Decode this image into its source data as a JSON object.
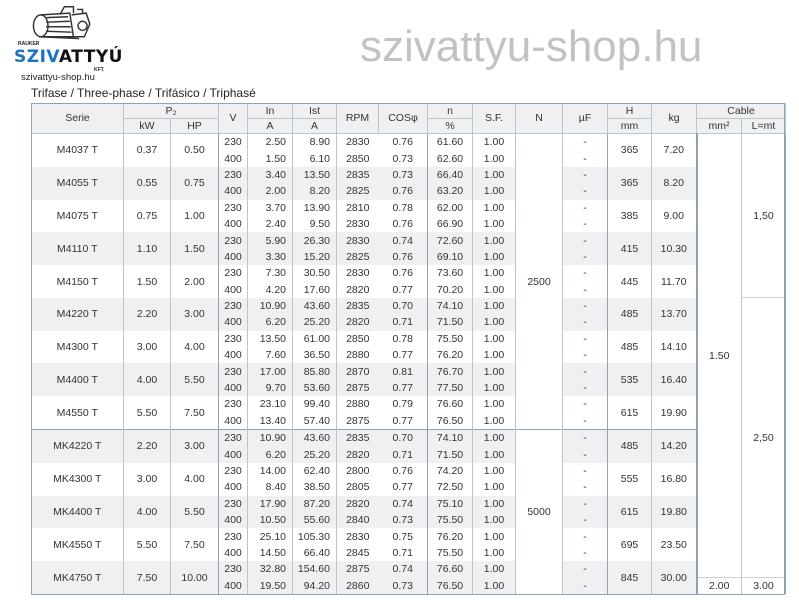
{
  "logo": {
    "small_text": "RAUKER",
    "brand_blue": "SZIV",
    "brand_dark": "ATTYÚ",
    "suffix": "KFT.",
    "icon": "pump-icon",
    "brand_color": "#1b74c0"
  },
  "site": "szivattyu-shop.hu",
  "title": "Trifase / Three-phase / Trifásico / Triphasé",
  "watermark": "szivattyu-shop.hu",
  "headers": {
    "serie": "Serie",
    "p2": "P₂",
    "kw": "kW",
    "hp": "HP",
    "v": "V",
    "in": "In",
    "in_unit": "A",
    "ist": "Ist",
    "ist_unit": "A",
    "rpm": "RPM",
    "cos": "COSφ",
    "n": "n",
    "n_unit": "%",
    "sf": "S.F.",
    "N": "N",
    "uf": "µF",
    "h": "H",
    "h_unit": "mm",
    "kg": "kg",
    "cable": "Cable",
    "mm2": "mm²",
    "lmt": "L=mt"
  },
  "n_values": [
    "2500",
    "5000"
  ],
  "cable": {
    "mm2_main": "1.50",
    "mm2_last": "2.00",
    "l_first": "1,50",
    "l_second": "2,50",
    "l_last": "3.00"
  },
  "rows": [
    {
      "serie": "M4037 T",
      "kw": "0.37",
      "hp": "0.50",
      "h": "365",
      "kg": "7.20",
      "sub": [
        [
          "230",
          "2.50",
          "8.90",
          "2830",
          "0.76",
          "61.60",
          "1.00",
          "-"
        ],
        [
          "400",
          "1.50",
          "6.10",
          "2850",
          "0.73",
          "62.60",
          "1.00",
          "-"
        ]
      ]
    },
    {
      "serie": "M4055 T",
      "kw": "0.55",
      "hp": "0.75",
      "h": "365",
      "kg": "8.20",
      "sub": [
        [
          "230",
          "3.40",
          "13.50",
          "2835",
          "0.73",
          "66.40",
          "1.00",
          "-"
        ],
        [
          "400",
          "2.00",
          "8.20",
          "2825",
          "0.76",
          "63.20",
          "1.00",
          "-"
        ]
      ]
    },
    {
      "serie": "M4075 T",
      "kw": "0.75",
      "hp": "1.00",
      "h": "385",
      "kg": "9.00",
      "sub": [
        [
          "230",
          "3.70",
          "13.90",
          "2810",
          "0.78",
          "62.00",
          "1.00",
          "-"
        ],
        [
          "400",
          "2.40",
          "9.50",
          "2830",
          "0.76",
          "66.90",
          "1.00",
          "-"
        ]
      ]
    },
    {
      "serie": "M4110 T",
      "kw": "1.10",
      "hp": "1.50",
      "h": "415",
      "kg": "10.30",
      "sub": [
        [
          "230",
          "5.90",
          "26.30",
          "2830",
          "0.74",
          "72.60",
          "1.00",
          "-"
        ],
        [
          "400",
          "3.30",
          "15.20",
          "2825",
          "0.76",
          "69.10",
          "1.00",
          "-"
        ]
      ]
    },
    {
      "serie": "M4150 T",
      "kw": "1.50",
      "hp": "2.00",
      "h": "445",
      "kg": "11.70",
      "sub": [
        [
          "230",
          "7.30",
          "30.50",
          "2830",
          "0.76",
          "73.60",
          "1.00",
          "-"
        ],
        [
          "400",
          "4.20",
          "17.60",
          "2820",
          "0.77",
          "70.20",
          "1.00",
          "-"
        ]
      ]
    },
    {
      "serie": "M4220 T",
      "kw": "2.20",
      "hp": "3.00",
      "h": "485",
      "kg": "13.70",
      "sub": [
        [
          "230",
          "10.90",
          "43.60",
          "2835",
          "0.70",
          "74.10",
          "1.00",
          "-"
        ],
        [
          "400",
          "6.20",
          "25.20",
          "2820",
          "0.71",
          "71.50",
          "1.00",
          "-"
        ]
      ]
    },
    {
      "serie": "M4300 T",
      "kw": "3.00",
      "hp": "4.00",
      "h": "485",
      "kg": "14.10",
      "sub": [
        [
          "230",
          "13.50",
          "61.00",
          "2850",
          "0.78",
          "75.50",
          "1.00",
          "-"
        ],
        [
          "400",
          "7.60",
          "36.50",
          "2880",
          "0.77",
          "76.20",
          "1.00",
          "-"
        ]
      ]
    },
    {
      "serie": "M4400 T",
      "kw": "4.00",
      "hp": "5.50",
      "h": "535",
      "kg": "16.40",
      "sub": [
        [
          "230",
          "17.00",
          "85.80",
          "2870",
          "0.81",
          "76.70",
          "1.00",
          "-"
        ],
        [
          "400",
          "9.70",
          "53.60",
          "2875",
          "0.77",
          "77.50",
          "1.00",
          "-"
        ]
      ]
    },
    {
      "serie": "M4550 T",
      "kw": "5.50",
      "hp": "7.50",
      "h": "615",
      "kg": "19.90",
      "sub": [
        [
          "230",
          "23.10",
          "99.40",
          "2880",
          "0.79",
          "76.60",
          "1.00",
          "-"
        ],
        [
          "400",
          "13.40",
          "57.40",
          "2875",
          "0.77",
          "76.50",
          "1.00",
          "-"
        ]
      ]
    },
    {
      "serie": "MK4220 T",
      "kw": "2.20",
      "hp": "3.00",
      "h": "485",
      "kg": "14.20",
      "sub": [
        [
          "230",
          "10.90",
          "43.60",
          "2835",
          "0.70",
          "74.10",
          "1.00",
          "-"
        ],
        [
          "400",
          "6.20",
          "25.20",
          "2820",
          "0.71",
          "71.50",
          "1.00",
          "-"
        ]
      ]
    },
    {
      "serie": "MK4300 T",
      "kw": "3.00",
      "hp": "4.00",
      "h": "555",
      "kg": "16.80",
      "sub": [
        [
          "230",
          "14.00",
          "62.40",
          "2800",
          "0.76",
          "74.20",
          "1.00",
          "-"
        ],
        [
          "400",
          "8.40",
          "38.50",
          "2805",
          "0.77",
          "72.50",
          "1.00",
          "-"
        ]
      ]
    },
    {
      "serie": "MK4400 T",
      "kw": "4.00",
      "hp": "5.50",
      "h": "615",
      "kg": "19.80",
      "sub": [
        [
          "230",
          "17.90",
          "87.20",
          "2820",
          "0.74",
          "75.10",
          "1.00",
          "-"
        ],
        [
          "400",
          "10.50",
          "55.60",
          "2840",
          "0.73",
          "75.50",
          "1.00",
          "-"
        ]
      ]
    },
    {
      "serie": "MK4550 T",
      "kw": "5.50",
      "hp": "7.50",
      "h": "695",
      "kg": "23.50",
      "sub": [
        [
          "230",
          "25.10",
          "105.30",
          "2830",
          "0.75",
          "76.20",
          "1.00",
          "-"
        ],
        [
          "400",
          "14.50",
          "66.40",
          "2845",
          "0.71",
          "75.50",
          "1.00",
          "-"
        ]
      ]
    },
    {
      "serie": "MK4750 T",
      "kw": "7.50",
      "hp": "10.00",
      "h": "845",
      "kg": "30.00",
      "sub": [
        [
          "230",
          "32.80",
          "154.60",
          "2875",
          "0.74",
          "76.60",
          "1.00",
          "-"
        ],
        [
          "400",
          "19.50",
          "94.20",
          "2860",
          "0.73",
          "76.50",
          "1.00",
          "-"
        ]
      ]
    }
  ]
}
